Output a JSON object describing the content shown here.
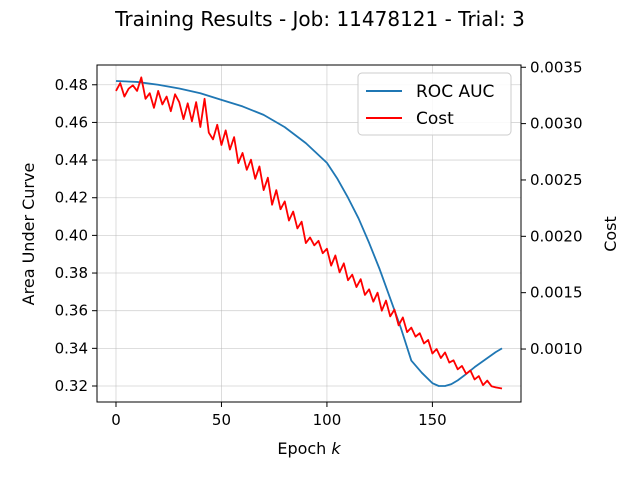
{
  "chart_data": {
    "type": "line",
    "title": "Training Results - Job: 11478121 - Trial: 3",
    "xlabel_prefix": "Epoch ",
    "xlabel_var": "k",
    "ylabel": "Area Under Curve",
    "y2label": "Cost",
    "xlim": [
      -9,
      192
    ],
    "ylim": [
      0.3115,
      0.4905
    ],
    "y2lim": [
      0.00053,
      0.00352
    ],
    "xticks": [
      0,
      50,
      100,
      150
    ],
    "yticks": [
      0.32,
      0.34,
      0.36,
      0.38,
      0.4,
      0.42,
      0.44,
      0.46,
      0.48
    ],
    "y2ticks": [
      0.001,
      0.0015,
      0.002,
      0.0025,
      0.003,
      0.0035
    ],
    "grid": true,
    "legend_position": "top-right",
    "series": [
      {
        "name": "ROC AUC",
        "axis": "left",
        "color": "#1f77b4",
        "x": [
          0,
          10,
          20,
          30,
          40,
          50,
          60,
          70,
          80,
          90,
          100,
          105,
          110,
          115,
          120,
          125,
          130,
          135,
          140,
          145,
          150,
          153,
          156,
          159,
          162,
          165,
          170,
          175,
          180,
          183
        ],
        "y": [
          0.482,
          0.4815,
          0.48,
          0.478,
          0.4755,
          0.472,
          0.4685,
          0.464,
          0.4575,
          0.449,
          0.4385,
          0.43,
          0.42,
          0.409,
          0.396,
          0.382,
          0.3665,
          0.351,
          0.3335,
          0.327,
          0.3215,
          0.32,
          0.32,
          0.321,
          0.323,
          0.3255,
          0.33,
          0.334,
          0.338,
          0.34
        ]
      },
      {
        "name": "Cost",
        "axis": "right",
        "color": "#ff0000",
        "x": [
          0,
          2,
          4,
          6,
          8,
          10,
          12,
          14,
          16,
          18,
          20,
          22,
          24,
          26,
          28,
          30,
          32,
          34,
          36,
          38,
          40,
          42,
          44,
          46,
          48,
          50,
          52,
          54,
          56,
          58,
          60,
          62,
          64,
          66,
          68,
          70,
          72,
          74,
          76,
          78,
          80,
          82,
          84,
          86,
          88,
          90,
          92,
          94,
          96,
          98,
          100,
          102,
          104,
          106,
          108,
          110,
          112,
          114,
          116,
          118,
          120,
          122,
          124,
          126,
          128,
          130,
          132,
          134,
          136,
          138,
          140,
          142,
          144,
          146,
          148,
          150,
          152,
          154,
          156,
          158,
          160,
          162,
          164,
          166,
          168,
          170,
          172,
          174,
          176,
          178,
          180,
          183
        ],
        "y": [
          0.00329,
          0.00336,
          0.00324,
          0.00331,
          0.00334,
          0.00329,
          0.00341,
          0.00322,
          0.00327,
          0.00314,
          0.00329,
          0.00317,
          0.00324,
          0.00311,
          0.00326,
          0.00319,
          0.00304,
          0.00318,
          0.00302,
          0.00319,
          0.00297,
          0.00322,
          0.00292,
          0.00286,
          0.00299,
          0.00281,
          0.00294,
          0.00277,
          0.00288,
          0.00265,
          0.00274,
          0.00259,
          0.00268,
          0.00251,
          0.00262,
          0.00241,
          0.00252,
          0.00228,
          0.00241,
          0.00224,
          0.00231,
          0.00214,
          0.00222,
          0.00207,
          0.00213,
          0.00194,
          0.00199,
          0.00192,
          0.00196,
          0.00185,
          0.00189,
          0.00174,
          0.00183,
          0.00168,
          0.00176,
          0.00161,
          0.00166,
          0.00155,
          0.00162,
          0.00148,
          0.00153,
          0.00142,
          0.0015,
          0.00134,
          0.00143,
          0.00129,
          0.00135,
          0.00121,
          0.00128,
          0.00115,
          0.00119,
          0.00111,
          0.00114,
          0.00105,
          0.00108,
          0.00096,
          0.001,
          0.00092,
          0.00097,
          0.00088,
          0.0009,
          0.00082,
          0.00085,
          0.00078,
          0.00081,
          0.00073,
          0.00076,
          0.00068,
          0.00072,
          0.00067,
          0.00066,
          0.00065
        ]
      }
    ]
  }
}
